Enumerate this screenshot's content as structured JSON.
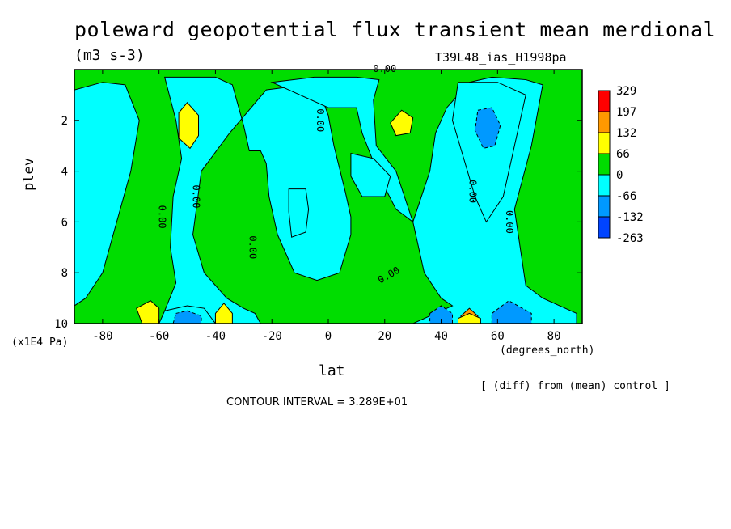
{
  "chart_data": {
    "type": "heatmap",
    "title": "poleward geopotential flux transient mean merdional",
    "units": "(m3 s-3)",
    "run_label": "T39L48_ias_H1998pa",
    "xlabel": "lat",
    "x_unit": "(degrees_north)",
    "ylabel": "plev",
    "y_unit": "(x1E4 Pa)",
    "xlim": [
      -90,
      90
    ],
    "ylim": [
      10,
      0
    ],
    "x_ticks": [
      -80,
      -60,
      -40,
      -20,
      0,
      20,
      40,
      60,
      80
    ],
    "y_ticks": [
      2,
      4,
      6,
      8,
      10
    ],
    "contour_interval_text": "CONTOUR INTERVAL = 3.289E+01",
    "note": "[ (diff) from (mean) control ]",
    "contour_labels": [
      "0.00"
    ],
    "colorbar": {
      "levels": [
        329,
        197,
        132,
        66,
        0,
        -66,
        -132,
        -263
      ],
      "colors": [
        "#ff0000",
        "#ff9900",
        "#ffff00",
        "#00dd00",
        "#00ffff",
        "#0099ff",
        "#0044ff"
      ]
    },
    "background_level_color": "#00dd00",
    "regions": [
      {
        "name": "cyan-sh-polar",
        "color": "#00ffff",
        "pts": [
          [
            -90,
            0.8
          ],
          [
            -80,
            0.5
          ],
          [
            -72,
            0.6
          ],
          [
            -67,
            2
          ],
          [
            -70,
            4
          ],
          [
            -75,
            6
          ],
          [
            -80,
            8
          ],
          [
            -86,
            9
          ],
          [
            -90,
            9.3
          ]
        ]
      },
      {
        "name": "cyan-sh-midlat",
        "color": "#00ffff",
        "pts": [
          [
            -58,
            0.3
          ],
          [
            -40,
            0.3
          ],
          [
            -34,
            0.6
          ],
          [
            -30,
            2.2
          ],
          [
            -28,
            3.2
          ],
          [
            -24,
            3.2
          ],
          [
            -22,
            3.7
          ],
          [
            -21,
            5
          ],
          [
            -18,
            6.5
          ],
          [
            -12,
            8
          ],
          [
            -4,
            8.3
          ],
          [
            4,
            8
          ],
          [
            8,
            6.5
          ],
          [
            8,
            5.8
          ],
          [
            6,
            4.8
          ],
          [
            2,
            3
          ],
          [
            0,
            1.8
          ],
          [
            -2,
            1.2
          ],
          [
            -5,
            0.6
          ],
          [
            -15,
            0.7
          ],
          [
            -22,
            0.8
          ],
          [
            -35,
            2.5
          ],
          [
            -45,
            4
          ],
          [
            -48,
            6.5
          ],
          [
            -44,
            8
          ],
          [
            -36,
            9
          ],
          [
            -30,
            9.4
          ],
          [
            -26,
            9.6
          ],
          [
            -24,
            10
          ],
          [
            -52,
            10
          ],
          [
            -58,
            9.5
          ],
          [
            -54,
            8.4
          ],
          [
            -56,
            7
          ],
          [
            -55,
            5
          ],
          [
            -52,
            3.5
          ],
          [
            -54,
            2
          ]
        ]
      },
      {
        "name": "cyan-nh-mid",
        "color": "#00ffff",
        "pts": [
          [
            -20,
            0.5
          ],
          [
            -5,
            0.3
          ],
          [
            10,
            0.3
          ],
          [
            18,
            0.4
          ],
          [
            16,
            1.2
          ],
          [
            17,
            3
          ],
          [
            24,
            4
          ],
          [
            27,
            5
          ],
          [
            30,
            6
          ],
          [
            34,
            8
          ],
          [
            40,
            9
          ],
          [
            44,
            9.3
          ],
          [
            30,
            10
          ],
          [
            88,
            10
          ],
          [
            88,
            9.6
          ],
          [
            76,
            9
          ],
          [
            70,
            8.5
          ],
          [
            66,
            5.5
          ],
          [
            72,
            3
          ],
          [
            76,
            0.6
          ],
          [
            70,
            0.4
          ],
          [
            58,
            0.3
          ],
          [
            50,
            0.5
          ],
          [
            42,
            1.5
          ],
          [
            38,
            2.5
          ],
          [
            36,
            4
          ],
          [
            30,
            6
          ],
          [
            24,
            5.5
          ],
          [
            18,
            4.2
          ],
          [
            12,
            2.5
          ],
          [
            10,
            1.5
          ],
          [
            0,
            1.5
          ]
        ]
      },
      {
        "name": "cyan-tropic-inner",
        "color": "#00ffff",
        "pts": [
          [
            -14,
            4.7
          ],
          [
            -8,
            4.7
          ],
          [
            -7,
            5.5
          ],
          [
            -8,
            6.4
          ],
          [
            -13,
            6.6
          ],
          [
            -14,
            5.6
          ]
        ]
      },
      {
        "name": "cyan-nh-mid2",
        "color": "#00ffff",
        "pts": [
          [
            8,
            3.3
          ],
          [
            16,
            3.5
          ],
          [
            22,
            4.2
          ],
          [
            20,
            5
          ],
          [
            12,
            5
          ],
          [
            8,
            4.2
          ]
        ]
      },
      {
        "name": "cyan-nh-60",
        "color": "#00ffff",
        "pts": [
          [
            46,
            0.5
          ],
          [
            60,
            0.5
          ],
          [
            70,
            1
          ],
          [
            66,
            3
          ],
          [
            62,
            5
          ],
          [
            56,
            6
          ],
          [
            52,
            5
          ],
          [
            48,
            3.5
          ],
          [
            44,
            2
          ]
        ]
      },
      {
        "name": "blue-nh-60",
        "color": "#0099ff",
        "pts": [
          [
            53,
            1.6
          ],
          [
            58,
            1.5
          ],
          [
            61,
            2.2
          ],
          [
            59,
            3
          ],
          [
            55,
            3.1
          ],
          [
            52,
            2.4
          ]
        ]
      },
      {
        "name": "yellow-sh-50",
        "color": "#ffff00",
        "pts": [
          [
            -53,
            1.7
          ],
          [
            -50,
            1.3
          ],
          [
            -46,
            1.8
          ],
          [
            -46,
            2.6
          ],
          [
            -49,
            3.1
          ],
          [
            -53,
            2.7
          ]
        ]
      },
      {
        "name": "yellow-nh-25",
        "color": "#ffff00",
        "pts": [
          [
            22,
            2.1
          ],
          [
            26,
            1.6
          ],
          [
            30,
            1.9
          ],
          [
            29,
            2.5
          ],
          [
            24,
            2.6
          ]
        ]
      },
      {
        "name": "cyan-sh-low1",
        "color": "#00ffff",
        "pts": [
          [
            -58,
            9.5
          ],
          [
            -50,
            9.3
          ],
          [
            -44,
            9.4
          ],
          [
            -40,
            10
          ],
          [
            -60,
            10
          ]
        ]
      },
      {
        "name": "blue-sh-low1",
        "color": "#0099ff",
        "pts": [
          [
            -54,
            9.6
          ],
          [
            -50,
            9.5
          ],
          [
            -45,
            9.7
          ],
          [
            -45,
            10
          ],
          [
            -55,
            10
          ]
        ]
      },
      {
        "name": "yellow-sh-low1",
        "color": "#ffff00",
        "pts": [
          [
            -68,
            9.4
          ],
          [
            -63,
            9.1
          ],
          [
            -60,
            9.4
          ],
          [
            -60,
            10
          ],
          [
            -66,
            10
          ]
        ]
      },
      {
        "name": "yellow-sh-low2",
        "color": "#ffff00",
        "pts": [
          [
            -40,
            9.6
          ],
          [
            -37,
            9.2
          ],
          [
            -34,
            9.6
          ],
          [
            -34,
            10
          ],
          [
            -40,
            10
          ]
        ]
      },
      {
        "name": "blue-nh-low1",
        "color": "#0099ff",
        "pts": [
          [
            36,
            9.6
          ],
          [
            40,
            9.3
          ],
          [
            44,
            9.6
          ],
          [
            44,
            10
          ],
          [
            36,
            10
          ]
        ]
      },
      {
        "name": "blue-nh-low2",
        "color": "#0099ff",
        "pts": [
          [
            58,
            9.6
          ],
          [
            64,
            9.1
          ],
          [
            72,
            9.6
          ],
          [
            72,
            10
          ],
          [
            58,
            10
          ]
        ]
      },
      {
        "name": "orange-nh-low",
        "color": "#ff9900",
        "pts": [
          [
            47,
            9.7
          ],
          [
            50,
            9.4
          ],
          [
            53,
            9.7
          ],
          [
            53,
            10
          ],
          [
            47,
            10
          ]
        ]
      },
      {
        "name": "yellow-nh-low",
        "color": "#ffff00",
        "pts": [
          [
            46,
            9.8
          ],
          [
            50,
            9.6
          ],
          [
            54,
            9.8
          ],
          [
            54,
            10
          ],
          [
            46,
            10
          ]
        ]
      }
    ]
  }
}
